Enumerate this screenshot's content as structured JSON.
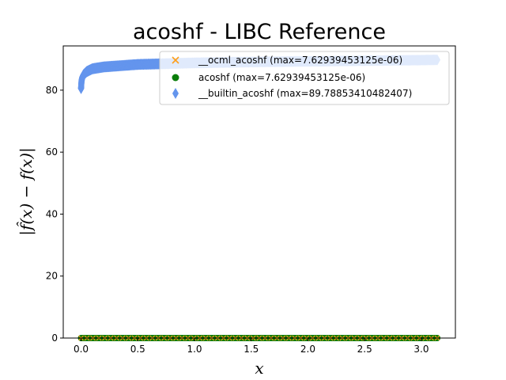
{
  "chart_data": {
    "type": "scatter",
    "title": "acoshf - LIBC Reference",
    "xlabel": "x",
    "ylabel": "|f̂(x) − f(x)|",
    "xlim": [
      -0.157,
      3.3
    ],
    "ylim": [
      0,
      94.28
    ],
    "x_ticks": [
      0.0,
      0.5,
      1.0,
      1.5,
      2.0,
      2.5,
      3.0
    ],
    "x_tick_labels": [
      "0.0",
      "0.5",
      "1.0",
      "1.5",
      "2.0",
      "2.5",
      "3.0"
    ],
    "y_ticks": [
      0,
      20,
      40,
      60,
      80
    ],
    "y_tick_labels": [
      "0",
      "20",
      "40",
      "60",
      "80"
    ],
    "grid": false,
    "legend_position": "top-right",
    "x_range": [
      0.0,
      3.14
    ],
    "series": [
      {
        "name": "__ocml_acoshf (max=7.62939453125e-06)",
        "marker": "x",
        "color": "#ff9f1a",
        "values": "approximately 0 across the x range (max 7.62939453125e-06)"
      },
      {
        "name": "acoshf (max=7.62939453125e-06)",
        "marker": "circle",
        "color": "#0a7d0a",
        "values": "approximately 0 across the x range (max 7.62939453125e-06)"
      },
      {
        "name": "__builtin_acoshf (max=89.78853410482407)",
        "marker": "diamond",
        "color": "#6495ed",
        "x": [
          0.0,
          0.002,
          0.005,
          0.01,
          0.02,
          0.05,
          0.1,
          0.2,
          0.5,
          1.0,
          1.5,
          2.0,
          2.5,
          3.0,
          3.14
        ],
        "y": [
          80.5,
          82.0,
          83.1,
          84.0,
          84.9,
          86.0,
          86.9,
          87.5,
          88.3,
          88.8,
          89.1,
          89.3,
          89.5,
          89.7,
          89.79
        ]
      }
    ]
  }
}
